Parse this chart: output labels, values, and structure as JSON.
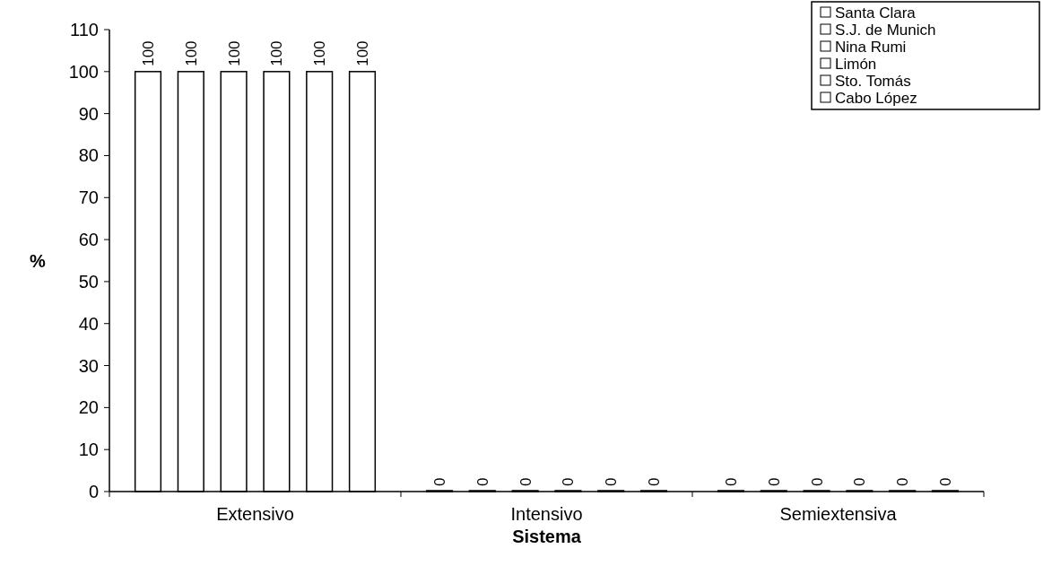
{
  "chart_data": {
    "type": "bar",
    "xlabel": "Sistema",
    "ylabel": "%",
    "categories": [
      "Extensivo",
      "Intensivo",
      "Semiextensiva"
    ],
    "series": [
      {
        "name": "Santa Clara",
        "color": "#ffffff",
        "values": [
          100,
          0,
          0
        ]
      },
      {
        "name": "S.J. de Munich",
        "color": "#ffffff",
        "values": [
          100,
          0,
          0
        ]
      },
      {
        "name": "Nina Rumi",
        "color": "#ffffff",
        "values": [
          100,
          0,
          0
        ]
      },
      {
        "name": "Limón",
        "color": "#ffffff",
        "values": [
          100,
          0,
          0
        ]
      },
      {
        "name": "Sto. Tomás",
        "color": "#ffffff",
        "values": [
          100,
          0,
          0
        ]
      },
      {
        "name": "Cabo López",
        "color": "#ffffff",
        "values": [
          100,
          0,
          0
        ]
      }
    ],
    "ylim": [
      0,
      110
    ],
    "yticks": [
      0,
      10,
      20,
      30,
      40,
      50,
      60,
      70,
      80,
      90,
      100,
      110
    ],
    "data_labels": true,
    "legend": "top right",
    "grid": false
  }
}
